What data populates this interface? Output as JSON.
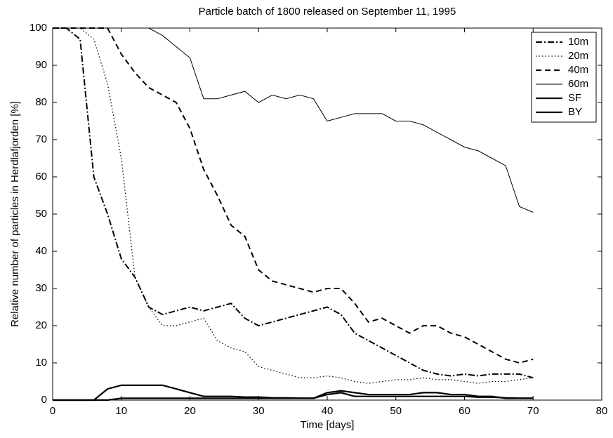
{
  "chart_data": {
    "type": "line",
    "title": "Particle batch of 1800 released on September 11, 1995",
    "xlabel": "Time [days]",
    "ylabel": "Relative number of particles in Herdlafjorden [%]",
    "x": [
      0,
      2,
      4,
      6,
      8,
      10,
      12,
      14,
      16,
      18,
      20,
      22,
      24,
      26,
      28,
      30,
      32,
      34,
      36,
      38,
      40,
      42,
      44,
      46,
      48,
      50,
      52,
      54,
      56,
      58,
      60,
      62,
      64,
      66,
      68,
      70
    ],
    "series": [
      {
        "name": "10m",
        "color": "#000000",
        "dash": "dashdot",
        "width": 2,
        "values": [
          100,
          100,
          97,
          60,
          50,
          38,
          33,
          25,
          23,
          24,
          25,
          24,
          25,
          26,
          22,
          20,
          21,
          22,
          23,
          24,
          25,
          23,
          18,
          16,
          14,
          12,
          10,
          8,
          7,
          6.5,
          7,
          6.5,
          7,
          7,
          7,
          6
        ]
      },
      {
        "name": "20m",
        "color": "#000000",
        "dash": "dotted",
        "width": 1.3,
        "values": [
          100,
          100,
          100,
          97,
          85,
          65,
          33,
          25,
          20,
          20,
          21,
          22,
          16,
          14,
          13,
          9,
          8,
          7,
          6,
          6,
          6.5,
          6,
          5,
          4.5,
          5,
          5.5,
          5.5,
          6,
          5.5,
          5.5,
          5,
          4.5,
          5,
          5,
          5.5,
          6
        ]
      },
      {
        "name": "40m",
        "color": "#000000",
        "dash": "dashed",
        "width": 2,
        "values": [
          100,
          100,
          100,
          100,
          100,
          93,
          88,
          84,
          82,
          80,
          73,
          62,
          55,
          47,
          44,
          35,
          32,
          31,
          30,
          29,
          30,
          30,
          26,
          21,
          22,
          20,
          18,
          20,
          20,
          18,
          17,
          15,
          13,
          11,
          10,
          11
        ]
      },
      {
        "name": "60m",
        "color": "#000000",
        "dash": "solid",
        "width": 1,
        "values": [
          100,
          100,
          100,
          100,
          100,
          100,
          100,
          100,
          98,
          95,
          92,
          81,
          81,
          82,
          83,
          80,
          82,
          81,
          82,
          81,
          75,
          76,
          77,
          77,
          77,
          75,
          75,
          74,
          72,
          70,
          68,
          67,
          65,
          63,
          52,
          50.5
        ]
      },
      {
        "name": "SF",
        "color": "#000000",
        "dash": "solid",
        "width": 2.2,
        "values": [
          0,
          0,
          0,
          0,
          3,
          4,
          4,
          4,
          4,
          3,
          2,
          1,
          1,
          1,
          0.8,
          0.8,
          0.6,
          0.6,
          0.5,
          0.5,
          2,
          2.5,
          2,
          1.5,
          1.5,
          1.5,
          1.5,
          2,
          2,
          1.5,
          1.5,
          1,
          1,
          0.5,
          0.5,
          0.5
        ]
      },
      {
        "name": "BY",
        "color": "#000000",
        "dash": "solid",
        "width": 2.2,
        "values": [
          0,
          0,
          0,
          0,
          0,
          0.5,
          0.5,
          0.5,
          0.5,
          0.5,
          0.5,
          0.5,
          0.5,
          0.5,
          0.5,
          0.5,
          0.5,
          0.5,
          0.5,
          0.5,
          1.5,
          2,
          1,
          1,
          1,
          1,
          1,
          1,
          1,
          1,
          1,
          0.8,
          0.8,
          0.6,
          0.5,
          0.5
        ]
      }
    ],
    "xlim": [
      0,
      80
    ],
    "xticks": [
      0,
      10,
      20,
      30,
      40,
      50,
      60,
      70,
      80
    ],
    "ylim": [
      0,
      100
    ],
    "yticks": [
      0,
      10,
      20,
      30,
      40,
      50,
      60,
      70,
      80,
      90,
      100
    ],
    "grid": false,
    "legend": "upper right"
  }
}
